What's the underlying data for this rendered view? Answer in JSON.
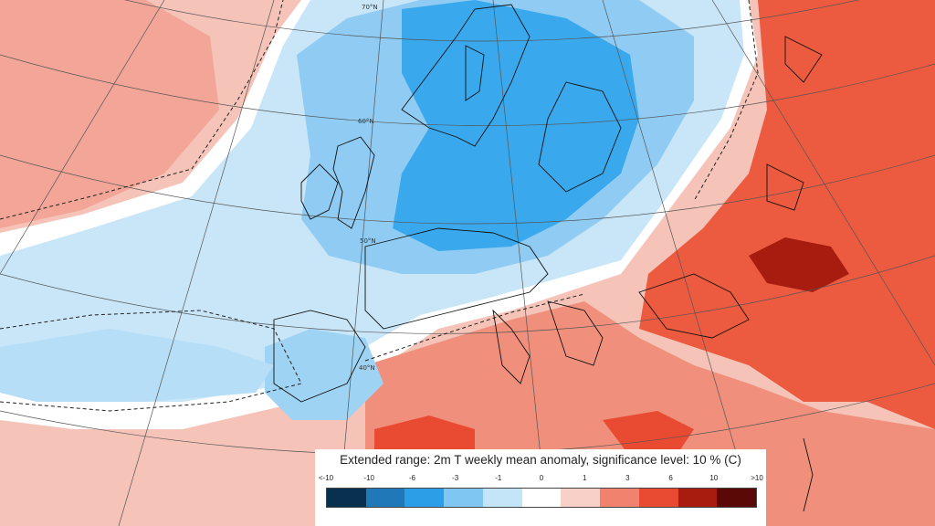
{
  "map": {
    "title": "Extended range: 2m T weekly mean anomaly, significance level: 10 % (C)",
    "latitude_labels": [
      "70°N",
      "60°N",
      "50°N",
      "40°N"
    ],
    "legend": {
      "tick_labels": [
        "<-10",
        "-10",
        "-6",
        "-3",
        "-1",
        "0",
        "1",
        "3",
        "6",
        "10",
        ">10"
      ],
      "colors": [
        "#08304f",
        "#1f78b8",
        "#2c9ee8",
        "#7fc6f2",
        "#c4e4f8",
        "#ffffff",
        "#f8d0c8",
        "#f0826e",
        "#e84a32",
        "#a81c10",
        "#5a0808"
      ]
    }
  }
}
